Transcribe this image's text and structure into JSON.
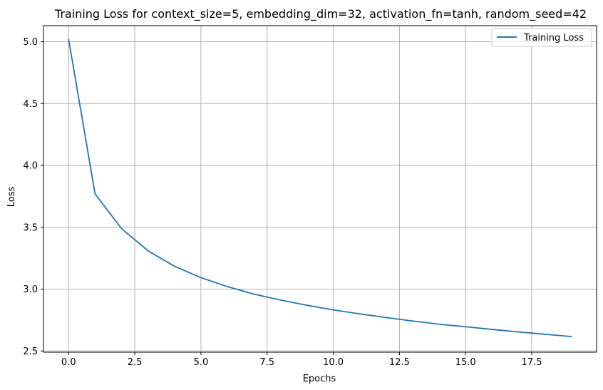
{
  "chart_data": {
    "type": "line",
    "title": "Training Loss for context_size=5, embedding_dim=32, activation_fn=tanh, random_seed=42",
    "xlabel": "Epochs",
    "ylabel": "Loss",
    "xlim": [
      -0.95,
      19.95
    ],
    "ylim": [
      2.49,
      5.13
    ],
    "xticks": [
      0.0,
      2.5,
      5.0,
      7.5,
      10.0,
      12.5,
      15.0,
      17.5
    ],
    "xtick_labels": [
      "0.0",
      "2.5",
      "5.0",
      "7.5",
      "10.0",
      "12.5",
      "15.0",
      "17.5"
    ],
    "yticks": [
      2.5,
      3.0,
      3.5,
      4.0,
      4.5,
      5.0
    ],
    "ytick_labels": [
      "2.5",
      "3.0",
      "3.5",
      "4.0",
      "4.5",
      "5.0"
    ],
    "grid": true,
    "legend_position": "top-right",
    "series": [
      {
        "name": "Training Loss",
        "color": "#1f77b4",
        "x": [
          0,
          1,
          2,
          3,
          4,
          5,
          6,
          7,
          8,
          9,
          10,
          11,
          12,
          13,
          14,
          15,
          16,
          17,
          18,
          19
        ],
        "y": [
          5.02,
          3.77,
          3.49,
          3.31,
          3.185,
          3.093,
          3.02,
          2.96,
          2.912,
          2.87,
          2.832,
          2.8,
          2.77,
          2.742,
          2.716,
          2.696,
          2.674,
          2.654,
          2.635,
          2.617
        ]
      }
    ]
  }
}
